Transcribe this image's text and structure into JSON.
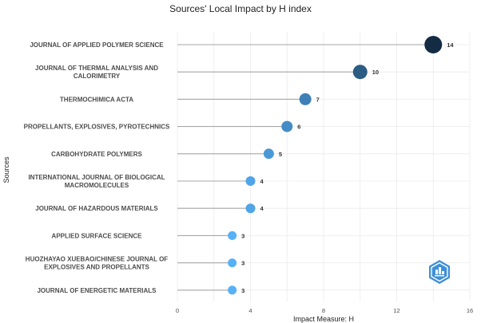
{
  "chart_data": {
    "type": "lollipop",
    "title": "Sources' Local Impact by H index",
    "xlabel": "Impact Measure: H",
    "ylabel": "Sources",
    "xlim": [
      0,
      16
    ],
    "xticks": [
      0,
      4,
      8,
      12,
      16
    ],
    "grid": true,
    "legend": "none",
    "color_scale": {
      "low": "#56b1f7",
      "high": "#132b43"
    },
    "series": [
      {
        "categories": [
          "JOURNAL OF APPLIED POLYMER SCIENCE",
          "JOURNAL OF THERMAL ANALYSIS AND CALORIMETRY",
          "THERMOCHIMICA ACTA",
          "PROPELLANTS, EXPLOSIVES, PYROTECHNICS",
          "CARBOHYDRATE POLYMERS",
          "INTERNATIONAL JOURNAL OF BIOLOGICAL MACROMOLECULES",
          "JOURNAL OF HAZARDOUS MATERIALS",
          "APPLIED SURFACE SCIENCE",
          "HUOZHAYAO XUEBAO/CHINESE JOURNAL OF EXPLOSIVES AND PROPELLANTS",
          "JOURNAL OF ENERGETIC MATERIALS"
        ],
        "labels": [
          [
            "JOURNAL OF APPLIED POLYMER SCIENCE"
          ],
          [
            "JOURNAL OF THERMAL ANALYSIS AND",
            "CALORIMETRY"
          ],
          [
            "THERMOCHIMICA ACTA"
          ],
          [
            "PROPELLANTS, EXPLOSIVES, PYROTECHNICS"
          ],
          [
            "CARBOHYDRATE POLYMERS"
          ],
          [
            "INTERNATIONAL JOURNAL OF BIOLOGICAL",
            "MACROMOLECULES"
          ],
          [
            "JOURNAL OF HAZARDOUS MATERIALS"
          ],
          [
            "APPLIED SURFACE SCIENCE"
          ],
          [
            "HUOZHAYAO XUEBAO/CHINESE JOURNAL OF",
            "EXPLOSIVES AND PROPELLANTS"
          ],
          [
            "JOURNAL OF ENERGETIC MATERIALS"
          ]
        ],
        "values": [
          14,
          10,
          7,
          6,
          5,
          4,
          4,
          3,
          3,
          3
        ]
      }
    ]
  },
  "watermark": {
    "icon": "bibliometrix-logo-icon"
  }
}
